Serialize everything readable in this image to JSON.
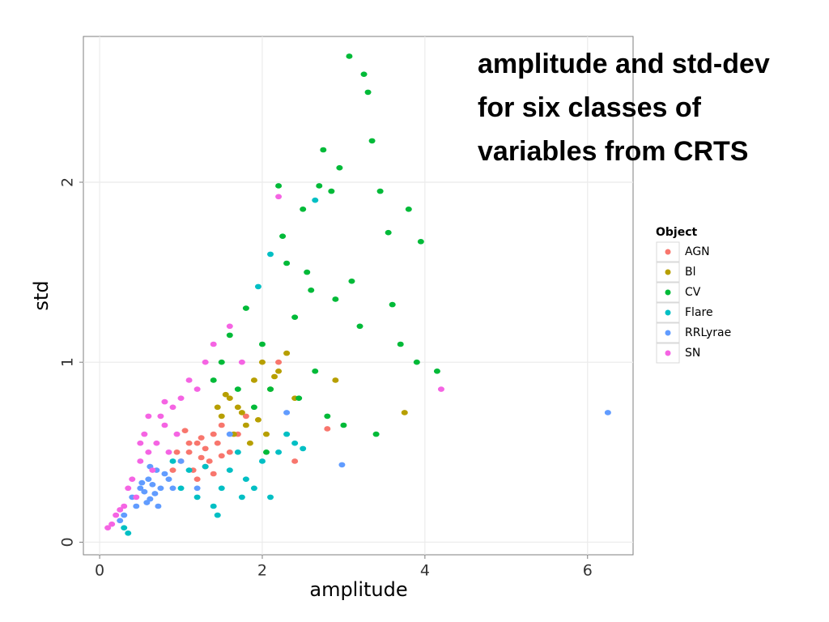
{
  "chart_data": {
    "type": "scatter",
    "title": "amplitude and std-dev for six classes of variables from CRTS",
    "x_label": "amplitude",
    "y_label": "std",
    "legend_title": "Object",
    "legend": "right",
    "grid": true,
    "xlim": [
      -0.2,
      6.56
    ],
    "ylim": [
      -0.07,
      2.81
    ],
    "xticks": [
      0,
      2,
      4,
      6
    ],
    "yticks": [
      0,
      1,
      2
    ],
    "series": [
      {
        "name": "AGN",
        "color": "#F8766D",
        "x": [
          1.0,
          1.1,
          1.2,
          1.3,
          1.4,
          1.5,
          1.15,
          1.25,
          1.35,
          0.95,
          1.05,
          1.45,
          1.6,
          1.2,
          1.3,
          1.1,
          0.9,
          1.4,
          1.5,
          1.7,
          2.4,
          2.8,
          2.2,
          1.8,
          1.25
        ],
        "values": [
          0.45,
          0.5,
          0.55,
          0.52,
          0.6,
          0.48,
          0.4,
          0.58,
          0.45,
          0.5,
          0.62,
          0.55,
          0.5,
          0.35,
          0.42,
          0.55,
          0.4,
          0.38,
          0.65,
          0.6,
          0.45,
          0.63,
          1.0,
          0.7,
          0.47
        ]
      },
      {
        "name": "Bl",
        "color": "#B79F00",
        "x": [
          1.5,
          1.6,
          1.7,
          1.8,
          1.9,
          2.0,
          2.1,
          2.2,
          1.65,
          1.75,
          1.55,
          2.3,
          2.4,
          1.85,
          2.05,
          3.75,
          2.9,
          1.45,
          1.95,
          2.15
        ],
        "values": [
          0.7,
          0.8,
          0.75,
          0.65,
          0.9,
          1.0,
          0.85,
          0.95,
          0.6,
          0.72,
          0.82,
          1.05,
          0.8,
          0.55,
          0.6,
          0.72,
          0.9,
          0.75,
          0.68,
          0.92
        ]
      },
      {
        "name": "CV",
        "color": "#00BA38",
        "x": [
          3.07,
          3.25,
          3.3,
          3.35,
          2.75,
          2.7,
          2.85,
          3.45,
          3.8,
          3.95,
          3.55,
          2.95,
          2.2,
          2.5,
          2.3,
          2.6,
          3.1,
          3.6,
          3.2,
          4.15,
          3.9,
          2.4,
          2.0,
          1.8,
          1.6,
          1.5,
          2.1,
          2.9,
          3.4,
          2.65,
          1.9,
          1.4,
          2.8,
          3.7,
          2.25,
          1.7,
          2.45,
          3.0,
          2.55,
          2.05
        ],
        "values": [
          2.7,
          2.6,
          2.5,
          2.23,
          2.18,
          1.98,
          1.95,
          1.95,
          1.85,
          1.67,
          1.72,
          2.08,
          1.98,
          1.85,
          1.55,
          1.4,
          1.45,
          1.32,
          1.2,
          0.95,
          1.0,
          1.25,
          1.1,
          1.3,
          1.15,
          1.0,
          0.85,
          1.35,
          0.6,
          0.95,
          0.75,
          0.9,
          0.7,
          1.1,
          1.7,
          0.85,
          0.8,
          0.65,
          1.5,
          0.5
        ]
      },
      {
        "name": "Flare",
        "color": "#00BFC4",
        "x": [
          1.0,
          1.2,
          1.4,
          1.6,
          1.8,
          2.0,
          2.2,
          2.4,
          1.3,
          1.5,
          1.7,
          1.9,
          2.1,
          0.9,
          1.1,
          2.65,
          2.1,
          1.95,
          2.3,
          0.35,
          0.3,
          1.45,
          1.75,
          2.5
        ],
        "values": [
          0.3,
          0.25,
          0.2,
          0.4,
          0.35,
          0.45,
          0.5,
          0.55,
          0.42,
          0.3,
          0.5,
          0.3,
          0.25,
          0.45,
          0.4,
          1.9,
          1.6,
          1.42,
          0.6,
          0.05,
          0.08,
          0.15,
          0.25,
          0.52
        ]
      },
      {
        "name": "RRLyrae",
        "color": "#619CFF",
        "x": [
          0.4,
          0.5,
          0.55,
          0.6,
          0.65,
          0.7,
          0.75,
          0.8,
          0.45,
          0.58,
          0.62,
          0.68,
          0.52,
          0.72,
          0.85,
          0.3,
          0.25,
          0.9,
          1.0,
          6.25,
          2.98,
          1.2,
          1.6,
          2.3,
          0.62
        ],
        "values": [
          0.25,
          0.3,
          0.28,
          0.35,
          0.32,
          0.4,
          0.3,
          0.38,
          0.2,
          0.22,
          0.42,
          0.27,
          0.33,
          0.2,
          0.35,
          0.15,
          0.12,
          0.3,
          0.45,
          0.72,
          0.43,
          0.3,
          0.6,
          0.72,
          0.24
        ]
      },
      {
        "name": "SN",
        "color": "#F564E3",
        "x": [
          0.1,
          0.15,
          0.2,
          0.3,
          0.35,
          0.4,
          0.5,
          0.6,
          0.7,
          0.8,
          0.9,
          1.0,
          1.1,
          0.55,
          0.65,
          0.75,
          0.85,
          0.95,
          0.45,
          1.2,
          1.3,
          0.5,
          0.6,
          0.8,
          4.2,
          2.2,
          1.4,
          1.6,
          1.75,
          0.25
        ],
        "values": [
          0.08,
          0.1,
          0.15,
          0.2,
          0.3,
          0.35,
          0.45,
          0.5,
          0.55,
          0.65,
          0.75,
          0.8,
          0.9,
          0.6,
          0.4,
          0.7,
          0.5,
          0.6,
          0.25,
          0.85,
          1.0,
          0.55,
          0.7,
          0.78,
          0.85,
          1.92,
          1.1,
          1.2,
          1.0,
          0.18
        ]
      }
    ]
  }
}
